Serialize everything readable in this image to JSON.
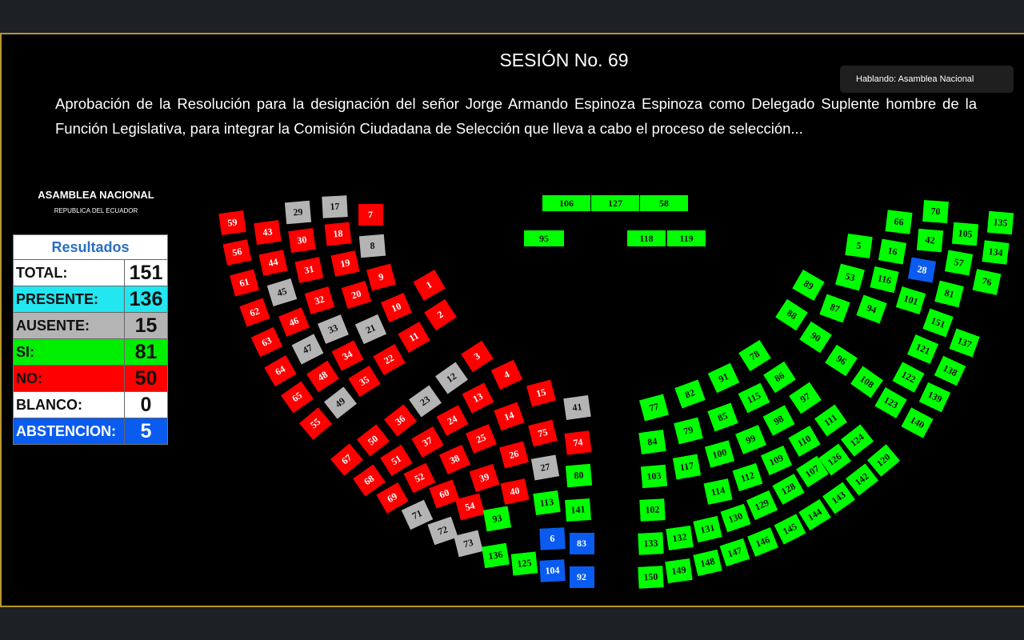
{
  "session": {
    "title": "SESIÓN No. 69",
    "description": "Aprobación de la Resolución para la designación del señor Jorge Armando Espinoza Espinoza como Delegado Suplente hombre de la Función Legislativa, para integrar la Comisión Ciudadana de Selección que lleva a cabo el proceso de selección..."
  },
  "speaking": "Hablando: Asamblea Nacional",
  "org": {
    "name": "ASAMBLEA NACIONAL",
    "subtitle": "REPUBLICA DEL ECUADOR"
  },
  "results": {
    "header": "Resultados",
    "rows": [
      {
        "label": "TOTAL:",
        "value": "151",
        "bg": "#ffffff",
        "fg": "#111111"
      },
      {
        "label": "PRESENTE:",
        "value": "136",
        "bg": "#22e6f0",
        "fg": "#111111"
      },
      {
        "label": "AUSENTE:",
        "value": "15",
        "bg": "#b4b4b4",
        "fg": "#111111"
      },
      {
        "label": "SI:",
        "value": "81",
        "bg": "#00ee00",
        "fg": "#111111"
      },
      {
        "label": "NO:",
        "value": "50",
        "bg": "#ff0000",
        "fg": "#111111"
      },
      {
        "label": "BLANCO:",
        "value": "0",
        "bg": "#ffffff",
        "fg": "#111111"
      },
      {
        "label": "ABSTENCION:",
        "value": "5",
        "bg": "#0a5cf0",
        "fg": "#ffffff"
      }
    ]
  },
  "vote_colors": {
    "si": "#00ff00",
    "no": "#ff0000",
    "ausente": "#b4b4b4",
    "abstencion": "#0a5cf0"
  },
  "seats": [
    {
      "n": "106",
      "v": "si"
    },
    {
      "n": "127",
      "v": "si"
    },
    {
      "n": "58",
      "v": "si"
    },
    {
      "n": "95",
      "v": "si"
    },
    {
      "n": "118",
      "v": "si"
    },
    {
      "n": "119",
      "v": "si"
    },
    {
      "n": "59",
      "v": "no"
    },
    {
      "n": "56",
      "v": "no"
    },
    {
      "n": "61",
      "v": "no"
    },
    {
      "n": "62",
      "v": "no"
    },
    {
      "n": "63",
      "v": "no"
    },
    {
      "n": "64",
      "v": "no"
    },
    {
      "n": "65",
      "v": "no"
    },
    {
      "n": "55",
      "v": "no"
    },
    {
      "n": "43",
      "v": "no"
    },
    {
      "n": "44",
      "v": "no"
    },
    {
      "n": "45",
      "v": "ausente"
    },
    {
      "n": "46",
      "v": "no"
    },
    {
      "n": "47",
      "v": "ausente"
    },
    {
      "n": "48",
      "v": "no"
    },
    {
      "n": "49",
      "v": "ausente"
    },
    {
      "n": "29",
      "v": "ausente"
    },
    {
      "n": "30",
      "v": "no"
    },
    {
      "n": "31",
      "v": "no"
    },
    {
      "n": "32",
      "v": "no"
    },
    {
      "n": "33",
      "v": "ausente"
    },
    {
      "n": "34",
      "v": "no"
    },
    {
      "n": "35",
      "v": "no"
    },
    {
      "n": "17",
      "v": "ausente"
    },
    {
      "n": "18",
      "v": "no"
    },
    {
      "n": "19",
      "v": "no"
    },
    {
      "n": "20",
      "v": "no"
    },
    {
      "n": "21",
      "v": "ausente"
    },
    {
      "n": "22",
      "v": "no"
    },
    {
      "n": "7",
      "v": "no"
    },
    {
      "n": "8",
      "v": "ausente"
    },
    {
      "n": "9",
      "v": "no"
    },
    {
      "n": "10",
      "v": "no"
    },
    {
      "n": "11",
      "v": "no"
    },
    {
      "n": "1",
      "v": "no"
    },
    {
      "n": "2",
      "v": "no"
    },
    {
      "n": "3",
      "v": "no"
    },
    {
      "n": "4",
      "v": "no"
    },
    {
      "n": "15",
      "v": "no"
    },
    {
      "n": "41",
      "v": "ausente"
    },
    {
      "n": "12",
      "v": "ausente"
    },
    {
      "n": "13",
      "v": "no"
    },
    {
      "n": "14",
      "v": "no"
    },
    {
      "n": "75",
      "v": "no"
    },
    {
      "n": "74",
      "v": "no"
    },
    {
      "n": "23",
      "v": "ausente"
    },
    {
      "n": "24",
      "v": "no"
    },
    {
      "n": "25",
      "v": "no"
    },
    {
      "n": "26",
      "v": "no"
    },
    {
      "n": "27",
      "v": "ausente"
    },
    {
      "n": "80",
      "v": "si"
    },
    {
      "n": "36",
      "v": "no"
    },
    {
      "n": "37",
      "v": "no"
    },
    {
      "n": "38",
      "v": "no"
    },
    {
      "n": "39",
      "v": "no"
    },
    {
      "n": "40",
      "v": "no"
    },
    {
      "n": "113",
      "v": "si"
    },
    {
      "n": "141",
      "v": "si"
    },
    {
      "n": "50",
      "v": "no"
    },
    {
      "n": "51",
      "v": "no"
    },
    {
      "n": "52",
      "v": "no"
    },
    {
      "n": "60",
      "v": "no"
    },
    {
      "n": "54",
      "v": "no"
    },
    {
      "n": "93",
      "v": "si"
    },
    {
      "n": "67",
      "v": "no"
    },
    {
      "n": "68",
      "v": "no"
    },
    {
      "n": "69",
      "v": "no"
    },
    {
      "n": "71",
      "v": "ausente"
    },
    {
      "n": "72",
      "v": "ausente"
    },
    {
      "n": "73",
      "v": "ausente"
    },
    {
      "n": "136",
      "v": "si"
    },
    {
      "n": "125",
      "v": "si"
    },
    {
      "n": "104",
      "v": "abstencion"
    },
    {
      "n": "92",
      "v": "abstencion"
    },
    {
      "n": "6",
      "v": "abstencion"
    },
    {
      "n": "83",
      "v": "abstencion"
    },
    {
      "n": "77",
      "v": "si"
    },
    {
      "n": "82",
      "v": "si"
    },
    {
      "n": "91",
      "v": "si"
    },
    {
      "n": "78",
      "v": "si"
    },
    {
      "n": "84",
      "v": "si"
    },
    {
      "n": "79",
      "v": "si"
    },
    {
      "n": "85",
      "v": "si"
    },
    {
      "n": "115",
      "v": "si"
    },
    {
      "n": "86",
      "v": "si"
    },
    {
      "n": "103",
      "v": "si"
    },
    {
      "n": "117",
      "v": "si"
    },
    {
      "n": "100",
      "v": "si"
    },
    {
      "n": "99",
      "v": "si"
    },
    {
      "n": "98",
      "v": "si"
    },
    {
      "n": "97",
      "v": "si"
    },
    {
      "n": "102",
      "v": "si"
    },
    {
      "n": "114",
      "v": "si"
    },
    {
      "n": "112",
      "v": "si"
    },
    {
      "n": "109",
      "v": "si"
    },
    {
      "n": "110",
      "v": "si"
    },
    {
      "n": "111",
      "v": "si"
    },
    {
      "n": "133",
      "v": "si"
    },
    {
      "n": "132",
      "v": "si"
    },
    {
      "n": "131",
      "v": "si"
    },
    {
      "n": "130",
      "v": "si"
    },
    {
      "n": "129",
      "v": "si"
    },
    {
      "n": "128",
      "v": "si"
    },
    {
      "n": "107",
      "v": "si"
    },
    {
      "n": "126",
      "v": "si"
    },
    {
      "n": "124",
      "v": "si"
    },
    {
      "n": "150",
      "v": "si"
    },
    {
      "n": "149",
      "v": "si"
    },
    {
      "n": "148",
      "v": "si"
    },
    {
      "n": "147",
      "v": "si"
    },
    {
      "n": "146",
      "v": "si"
    },
    {
      "n": "145",
      "v": "si"
    },
    {
      "n": "144",
      "v": "si"
    },
    {
      "n": "143",
      "v": "si"
    },
    {
      "n": "142",
      "v": "si"
    },
    {
      "n": "120",
      "v": "si"
    },
    {
      "n": "89",
      "v": "si"
    },
    {
      "n": "88",
      "v": "si"
    },
    {
      "n": "90",
      "v": "si"
    },
    {
      "n": "96",
      "v": "si"
    },
    {
      "n": "108",
      "v": "si"
    },
    {
      "n": "123",
      "v": "si"
    },
    {
      "n": "140",
      "v": "si"
    },
    {
      "n": "5",
      "v": "si"
    },
    {
      "n": "53",
      "v": "si"
    },
    {
      "n": "87",
      "v": "si"
    },
    {
      "n": "66",
      "v": "si"
    },
    {
      "n": "16",
      "v": "si"
    },
    {
      "n": "116",
      "v": "si"
    },
    {
      "n": "94",
      "v": "si"
    },
    {
      "n": "70",
      "v": "si"
    },
    {
      "n": "42",
      "v": "si"
    },
    {
      "n": "28",
      "v": "abstencion"
    },
    {
      "n": "101",
      "v": "si"
    },
    {
      "n": "105",
      "v": "si"
    },
    {
      "n": "57",
      "v": "si"
    },
    {
      "n": "81",
      "v": "si"
    },
    {
      "n": "151",
      "v": "si"
    },
    {
      "n": "121",
      "v": "si"
    },
    {
      "n": "122",
      "v": "si"
    },
    {
      "n": "135",
      "v": "si"
    },
    {
      "n": "134",
      "v": "si"
    },
    {
      "n": "76",
      "v": "si"
    },
    {
      "n": "137",
      "v": "si"
    },
    {
      "n": "138",
      "v": "si"
    },
    {
      "n": "139",
      "v": "si"
    }
  ]
}
